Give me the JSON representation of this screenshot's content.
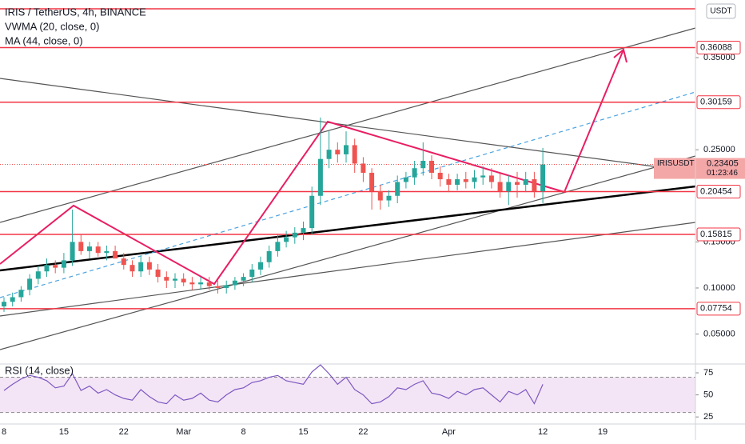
{
  "chart_data": {
    "type": "candlestick",
    "title": "IRIS / TetherUS, 4h, BINANCE",
    "indicators": [
      "VWMA (20, close, 0)",
      "MA (44, close, 0)"
    ],
    "currency": "USDT",
    "categories": [
      "8",
      null,
      null,
      null,
      null,
      null,
      null,
      "15",
      null,
      null,
      null,
      null,
      null,
      null,
      "22",
      null,
      null,
      null,
      null,
      null,
      null,
      "Mar",
      null,
      null,
      null,
      null,
      null,
      null,
      "8",
      null,
      null,
      null,
      null,
      null,
      null,
      "15",
      null,
      null,
      null,
      null,
      null,
      null,
      "22",
      null,
      null,
      null,
      null,
      null,
      null,
      null,
      null,
      null,
      "Apr",
      null,
      null,
      null,
      null,
      null,
      null,
      null,
      null,
      null,
      null,
      "12",
      null,
      null,
      null,
      null,
      null,
      null,
      "19",
      null,
      null,
      null,
      null,
      null,
      null,
      null,
      null,
      null,
      null
    ],
    "open": [
      0.08,
      0.085,
      0.09,
      0.098,
      0.11,
      0.118,
      0.125,
      0.122,
      0.13,
      0.15,
      0.14,
      0.145,
      0.138,
      0.14,
      0.132,
      0.125,
      0.118,
      0.128,
      0.12,
      0.112,
      0.108,
      0.11,
      0.106,
      0.104,
      0.106,
      0.102,
      0.1,
      0.103,
      0.108,
      0.112,
      0.12,
      0.128,
      0.14,
      0.15,
      0.155,
      0.16,
      0.165,
      0.2,
      0.24,
      0.25,
      0.245,
      0.255,
      0.235,
      0.225,
      0.205,
      0.195,
      0.2,
      0.215,
      0.22,
      0.23,
      0.238,
      0.225,
      0.218,
      0.212,
      0.218,
      0.215,
      0.22,
      0.222,
      0.215,
      0.205,
      0.215,
      0.212,
      0.218,
      0.205,
      null,
      null,
      null,
      null,
      null,
      null,
      null,
      null,
      null,
      null,
      null,
      null,
      null,
      null,
      null,
      null,
      null
    ],
    "high": [
      0.09,
      0.095,
      0.102,
      0.115,
      0.124,
      0.132,
      0.13,
      0.138,
      0.185,
      0.158,
      0.15,
      0.15,
      0.146,
      0.146,
      0.138,
      0.13,
      0.135,
      0.134,
      0.126,
      0.118,
      0.116,
      0.116,
      0.112,
      0.112,
      0.112,
      0.108,
      0.108,
      0.112,
      0.116,
      0.126,
      0.134,
      0.146,
      0.158,
      0.162,
      0.166,
      0.172,
      0.21,
      0.285,
      0.27,
      0.258,
      0.27,
      0.262,
      0.242,
      0.23,
      0.212,
      0.206,
      0.222,
      0.226,
      0.238,
      0.258,
      0.244,
      0.232,
      0.224,
      0.224,
      0.226,
      0.228,
      0.232,
      0.23,
      0.224,
      0.222,
      0.226,
      0.226,
      0.226,
      0.252,
      null,
      null,
      null,
      null,
      null,
      null,
      null,
      null,
      null,
      null,
      null,
      null,
      null,
      null,
      null,
      null,
      null
    ],
    "low": [
      0.074,
      0.08,
      0.085,
      0.092,
      0.104,
      0.112,
      0.116,
      0.116,
      0.124,
      0.136,
      0.132,
      0.134,
      0.13,
      0.132,
      0.12,
      0.112,
      0.112,
      0.114,
      0.106,
      0.1,
      0.1,
      0.102,
      0.098,
      0.098,
      0.098,
      0.094,
      0.094,
      0.098,
      0.102,
      0.106,
      0.114,
      0.122,
      0.134,
      0.144,
      0.148,
      0.152,
      0.158,
      0.19,
      0.23,
      0.236,
      0.236,
      0.225,
      0.215,
      0.185,
      0.185,
      0.188,
      0.192,
      0.208,
      0.212,
      0.222,
      0.218,
      0.21,
      0.204,
      0.206,
      0.208,
      0.208,
      0.212,
      0.208,
      0.198,
      0.19,
      0.198,
      0.204,
      0.198,
      0.192,
      null,
      null,
      null,
      null,
      null,
      null,
      null,
      null,
      null,
      null,
      null,
      null,
      null,
      null,
      null,
      null,
      null
    ],
    "close": [
      0.085,
      0.09,
      0.098,
      0.11,
      0.118,
      0.125,
      0.122,
      0.13,
      0.15,
      0.14,
      0.145,
      0.138,
      0.14,
      0.132,
      0.125,
      0.118,
      0.128,
      0.12,
      0.112,
      0.108,
      0.11,
      0.106,
      0.104,
      0.106,
      0.102,
      0.1,
      0.103,
      0.108,
      0.112,
      0.12,
      0.128,
      0.14,
      0.15,
      0.155,
      0.16,
      0.165,
      0.2,
      0.24,
      0.25,
      0.245,
      0.255,
      0.235,
      0.225,
      0.205,
      0.195,
      0.2,
      0.215,
      0.22,
      0.23,
      0.238,
      0.225,
      0.218,
      0.212,
      0.218,
      0.215,
      0.22,
      0.222,
      0.215,
      0.205,
      0.215,
      0.212,
      0.218,
      0.205,
      0.234,
      null,
      null,
      null,
      null,
      null,
      null,
      null,
      null,
      null,
      null,
      null,
      null,
      null,
      null,
      null,
      null,
      null
    ],
    "ylim": [
      0.0175,
      0.4125
    ],
    "yticks": [
      {
        "value": 0.05,
        "label": "0.05000"
      },
      {
        "value": 0.1,
        "label": "0.10000"
      },
      {
        "value": 0.15,
        "label": "0.15000"
      },
      {
        "value": 0.25,
        "label": "0.25000"
      },
      {
        "value": 0.35,
        "label": "0.35000"
      }
    ],
    "levels": [
      0.403,
      {
        "value": 0.36088,
        "label": "0.36088"
      },
      {
        "value": 0.30159,
        "label": "0.30159"
      },
      {
        "value": 0.20454,
        "label": "0.20454"
      },
      {
        "value": 0.15815,
        "label": "0.15815"
      },
      {
        "value": 0.07754,
        "label": "0.07754"
      }
    ],
    "last_price": {
      "symbol": "IRISUSDT",
      "value": 0.23405,
      "label": "0.23405",
      "countdown": "01:23:46"
    },
    "rsi": {
      "title": "RSI (14, close)",
      "ylim": [
        17,
        85
      ],
      "yticks": [
        25,
        50,
        75
      ],
      "band": [
        30,
        70
      ],
      "values": [
        55,
        62,
        68,
        72,
        70,
        66,
        58,
        60,
        74,
        55,
        60,
        52,
        56,
        50,
        46,
        44,
        56,
        48,
        42,
        40,
        50,
        44,
        46,
        52,
        44,
        42,
        50,
        56,
        58,
        64,
        66,
        70,
        72,
        66,
        64,
        62,
        76,
        84,
        74,
        62,
        70,
        56,
        50,
        40,
        42,
        48,
        58,
        56,
        62,
        66,
        52,
        50,
        46,
        54,
        50,
        56,
        58,
        50,
        42,
        54,
        50,
        56,
        40,
        62,
        null,
        null,
        null,
        null,
        null,
        null,
        null,
        null,
        null,
        null,
        null,
        null,
        null,
        null,
        null,
        null,
        null
      ]
    }
  }
}
